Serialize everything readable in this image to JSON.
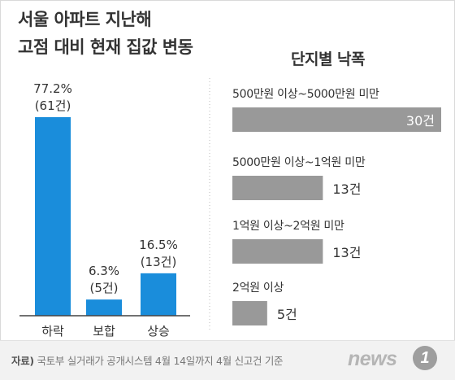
{
  "header": {
    "title_line1": "서울 아파트 지난해",
    "title_line2": "고점 대비 현재 집값 변동",
    "right_title": "단지별 낙폭"
  },
  "colors": {
    "left_bar": "#1a8ddb",
    "right_bar": "#999999",
    "axis": "#444444"
  },
  "chart_data": [
    {
      "type": "bar",
      "orientation": "vertical",
      "title": "서울 아파트 지난해 고점 대비 현재 집값 변동",
      "categories": [
        "하락",
        "보합",
        "상승"
      ],
      "values": [
        77.2,
        6.3,
        16.5
      ],
      "value_labels": [
        "77.2%",
        "6.3%",
        "16.5%"
      ],
      "count_labels": [
        "(61건)",
        "(5건)",
        "(13건)"
      ],
      "counts": [
        61,
        5,
        13
      ],
      "unit": "%",
      "grid": false,
      "legend": "none"
    },
    {
      "type": "bar",
      "orientation": "horizontal",
      "title": "단지별 낙폭",
      "categories": [
        "500만원 이상~5000만원 미만",
        "5000만원 이상~1억원 미만",
        "1억원 이상~2억원 미만",
        "2억원 이상"
      ],
      "values": [
        30,
        13,
        13,
        5
      ],
      "value_labels": [
        "30건",
        "13건",
        "13건",
        "5건"
      ],
      "unit": "건",
      "grid": false,
      "legend": "none"
    }
  ],
  "footer": {
    "source_label": "자료)",
    "source_text": "국토부 실거래가 공개시스템 4월 14일까지 4월 신고건 기준",
    "logo_text": "news",
    "logo_badge": "1"
  }
}
